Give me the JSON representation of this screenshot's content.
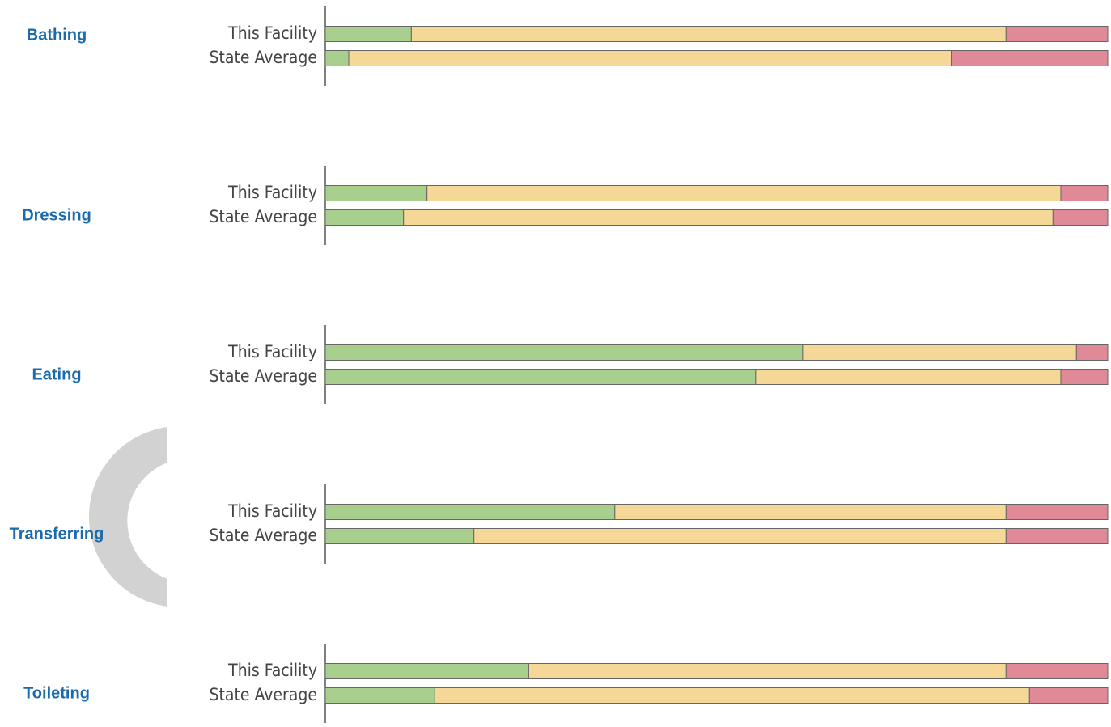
{
  "chart_data": [
    {
      "type": "bar",
      "orientation": "horizontal",
      "stacked": true,
      "title": "Bathing",
      "categories": [
        "This Facility",
        "State Average"
      ],
      "xlim": [
        0,
        100
      ],
      "series": [
        {
          "color": "#a9cf8f",
          "values": [
            11,
            3
          ]
        },
        {
          "color": "#f5d898",
          "values": [
            76,
            77
          ]
        },
        {
          "color": "#e08a97",
          "values": [
            13,
            20
          ]
        }
      ]
    },
    {
      "type": "bar",
      "orientation": "horizontal",
      "stacked": true,
      "title": "Dressing",
      "categories": [
        "This Facility",
        "State Average"
      ],
      "xlim": [
        0,
        100
      ],
      "series": [
        {
          "color": "#a9cf8f",
          "values": [
            13,
            10
          ]
        },
        {
          "color": "#f5d898",
          "values": [
            81,
            83
          ]
        },
        {
          "color": "#e08a97",
          "values": [
            6,
            7
          ]
        }
      ]
    },
    {
      "type": "bar",
      "orientation": "horizontal",
      "stacked": true,
      "title": "Eating",
      "categories": [
        "This Facility",
        "State Average"
      ],
      "xlim": [
        0,
        100
      ],
      "series": [
        {
          "color": "#a9cf8f",
          "values": [
            61,
            55
          ]
        },
        {
          "color": "#f5d898",
          "values": [
            35,
            39
          ]
        },
        {
          "color": "#e08a97",
          "values": [
            4,
            6
          ]
        }
      ]
    },
    {
      "type": "bar",
      "orientation": "horizontal",
      "stacked": true,
      "title": "Transferring",
      "categories": [
        "This Facility",
        "State Average"
      ],
      "xlim": [
        0,
        100
      ],
      "series": [
        {
          "color": "#a9cf8f",
          "values": [
            37,
            19
          ]
        },
        {
          "color": "#f5d898",
          "values": [
            50,
            68
          ]
        },
        {
          "color": "#e08a97",
          "values": [
            13,
            13
          ]
        }
      ]
    },
    {
      "type": "bar",
      "orientation": "horizontal",
      "stacked": true,
      "title": "Toileting",
      "categories": [
        "This Facility",
        "State Average"
      ],
      "xlim": [
        0,
        100
      ],
      "series": [
        {
          "color": "#a9cf8f",
          "values": [
            26,
            14
          ]
        },
        {
          "color": "#f5d898",
          "values": [
            61,
            76
          ]
        },
        {
          "color": "#e08a97",
          "values": [
            13,
            10
          ]
        }
      ]
    }
  ]
}
